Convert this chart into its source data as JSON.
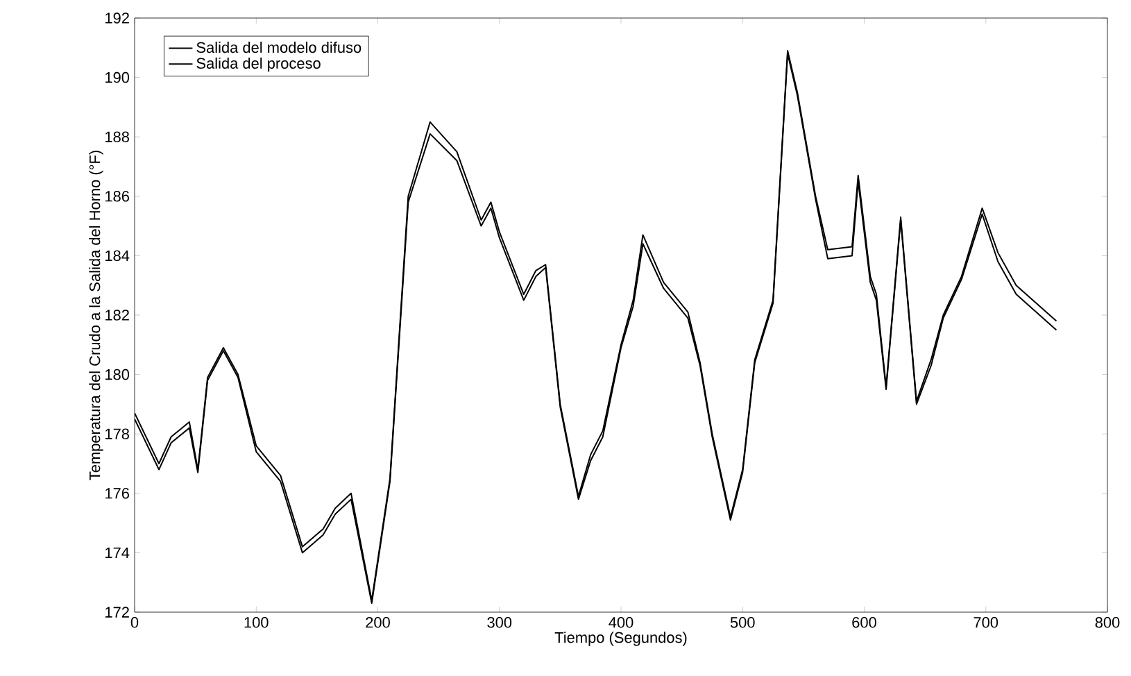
{
  "chart_data": {
    "type": "line",
    "xlabel": "Tiempo (Segundos)",
    "ylabel": "Temperatura del Crudo a la Salida del Horno (°F)",
    "xlim": [
      0,
      800
    ],
    "ylim": [
      172,
      192
    ],
    "xticks": [
      0,
      100,
      200,
      300,
      400,
      500,
      600,
      700,
      800
    ],
    "yticks": [
      172,
      174,
      176,
      178,
      180,
      182,
      184,
      186,
      188,
      190,
      192
    ],
    "grid": false,
    "legend": "top left",
    "line_style": "solid",
    "marker": "none",
    "x": [
      0,
      20,
      30,
      45,
      52,
      60,
      73,
      85,
      100,
      120,
      138,
      155,
      165,
      178,
      195,
      210,
      225,
      243,
      265,
      285,
      293,
      300,
      320,
      330,
      338,
      350,
      365,
      375,
      385,
      400,
      410,
      418,
      435,
      455,
      465,
      475,
      490,
      500,
      510,
      525,
      537,
      545,
      560,
      570,
      590,
      595,
      605,
      610,
      618,
      630,
      643,
      655,
      665,
      680,
      697,
      710,
      725,
      758
    ],
    "series": [
      {
        "name": "Salida del modelo difuso",
        "color": "#000000",
        "values": [
          178.7,
          177.0,
          177.9,
          178.4,
          176.8,
          179.9,
          180.9,
          180.0,
          177.6,
          176.6,
          174.2,
          174.8,
          175.5,
          176.0,
          172.4,
          176.5,
          186.0,
          188.5,
          187.5,
          185.2,
          185.8,
          184.8,
          182.7,
          183.5,
          183.7,
          179.0,
          175.9,
          177.3,
          178.1,
          181.0,
          182.5,
          184.7,
          183.1,
          182.1,
          180.4,
          178.0,
          175.2,
          176.8,
          180.5,
          182.5,
          190.9,
          189.5,
          186.0,
          184.2,
          184.3,
          186.7,
          183.3,
          182.7,
          179.6,
          185.3,
          179.1,
          180.5,
          182.0,
          183.3,
          185.6,
          184.1,
          183.0,
          181.8
        ]
      },
      {
        "name": "Salida del proceso",
        "color": "#000000",
        "values": [
          178.5,
          176.8,
          177.7,
          178.2,
          176.7,
          179.8,
          180.8,
          179.9,
          177.4,
          176.4,
          174.0,
          174.6,
          175.3,
          175.8,
          172.3,
          176.4,
          185.8,
          188.1,
          187.2,
          185.0,
          185.6,
          184.6,
          182.5,
          183.3,
          183.6,
          178.9,
          175.8,
          177.1,
          177.9,
          180.9,
          182.3,
          184.4,
          182.9,
          181.9,
          180.3,
          177.9,
          175.1,
          176.7,
          180.4,
          182.4,
          190.8,
          189.4,
          185.9,
          183.9,
          184.0,
          186.5,
          183.1,
          182.5,
          179.5,
          185.2,
          179.0,
          180.3,
          181.9,
          183.2,
          185.4,
          183.8,
          182.7,
          181.5
        ]
      }
    ]
  }
}
